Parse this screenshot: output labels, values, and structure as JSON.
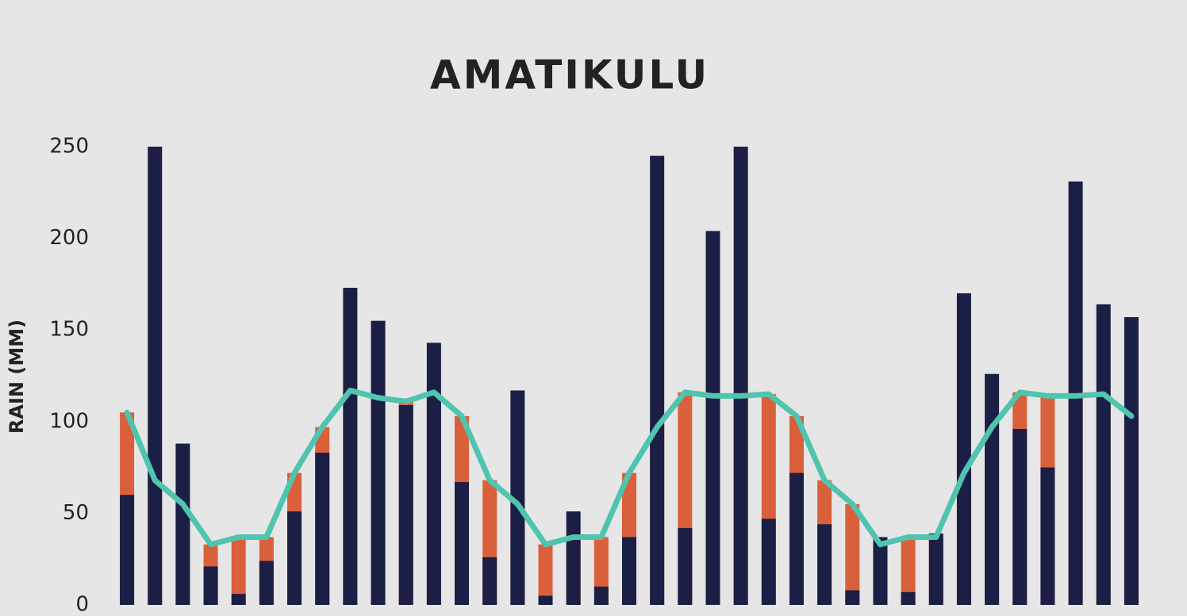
{
  "chart_data": {
    "type": "bar",
    "title": "AMATIKULU",
    "ylabel": "RAIN (MM)",
    "categories": [
      null,
      null,
      null,
      null,
      null,
      null,
      null,
      null,
      null,
      null,
      null,
      null,
      null,
      null,
      null,
      null,
      null,
      null,
      null,
      null,
      null,
      null,
      null,
      null,
      null,
      null,
      null,
      null,
      null,
      null,
      null,
      null,
      null,
      null,
      null,
      null,
      null
    ],
    "series": [
      {
        "type": "bar",
        "color": "#d9603b",
        "values": [
          105,
          68,
          55,
          33,
          37,
          37,
          72,
          97,
          117,
          113,
          111,
          116,
          103,
          68,
          55,
          33,
          37,
          37,
          72,
          97,
          116,
          114,
          114,
          115,
          103,
          68,
          55,
          33,
          37,
          37,
          72,
          97,
          116,
          114,
          114,
          115,
          103
        ]
      },
      {
        "type": "bar",
        "color": "#1b1f45",
        "values": [
          60,
          250,
          88,
          21,
          6,
          24,
          51,
          83,
          173,
          155,
          109,
          143,
          67,
          26,
          117,
          5,
          51,
          10,
          37,
          245,
          42,
          204,
          250,
          47,
          72,
          44,
          8,
          37,
          7,
          39,
          170,
          126,
          96,
          75,
          231,
          164,
          157
        ]
      },
      {
        "type": "line",
        "color": "#4fc4ae",
        "values": [
          105,
          68,
          55,
          33,
          37,
          37,
          72,
          97,
          117,
          113,
          111,
          116,
          103,
          68,
          55,
          33,
          37,
          37,
          72,
          97,
          116,
          114,
          114,
          115,
          103,
          68,
          55,
          33,
          37,
          37,
          72,
          97,
          116,
          114,
          114,
          115,
          103
        ]
      }
    ],
    "ylim": [
      0,
      250
    ],
    "yticks": [
      0,
      50,
      100,
      150,
      200,
      250
    ],
    "grid": false
  }
}
